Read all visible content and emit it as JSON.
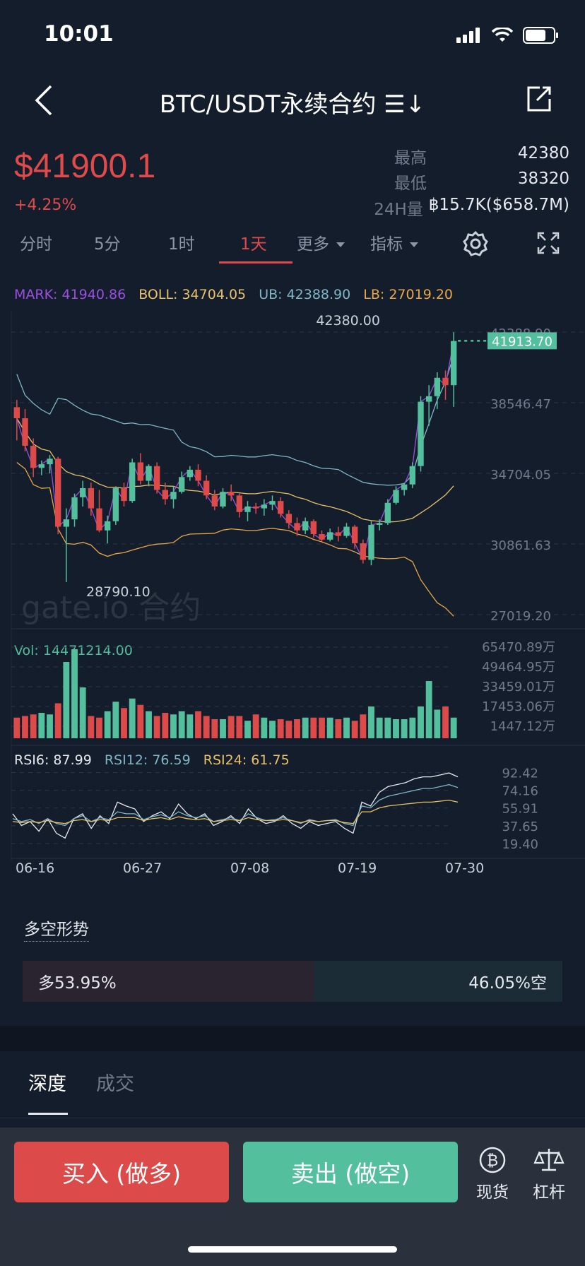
{
  "status": {
    "time": "10:01"
  },
  "header": {
    "title": "BTC/USDT永续合约 ☰↓"
  },
  "price": {
    "last": "$41900.1",
    "change": "+4.25%",
    "high_label": "最高",
    "high": "42380",
    "low_label": "最低",
    "low": "38320",
    "vol_label": "24H量",
    "vol": "฿15.7K($658.7M)"
  },
  "tabs": {
    "items": [
      "分时",
      "5分",
      "1时",
      "1天"
    ],
    "more": "更多",
    "indicator": "指标"
  },
  "legend": {
    "mark": "MARK: 41940.86",
    "boll": "BOLL: 34704.05",
    "ub": "UB: 42388.90",
    "lb": "LB: 27019.20",
    "vol": "Vol: 14471214.00",
    "rsi6": "RSI6: 87.99",
    "rsi12": "RSI12: 76.59",
    "rsi24": "RSI24: 61.75"
  },
  "chart_data": {
    "type": "candlestick",
    "y_ticks": [
      "42388.90",
      "38546.47",
      "34704.05",
      "30861.63",
      "27019.20"
    ],
    "ylim": [
      27019.2,
      42388.9
    ],
    "max_label": "42380.00",
    "min_label": "28790.10",
    "current_label": "41913.70",
    "watermark": "gate.io 合约",
    "vol_ticks": [
      "65470.89万",
      "49464.95万",
      "33459.01万",
      "17453.06万",
      "1447.12万"
    ],
    "rsi_ticks": [
      "92.42",
      "74.16",
      "55.91",
      "37.65",
      "19.40"
    ],
    "x_labels": [
      "06-16",
      "06-27",
      "07-08",
      "07-19",
      "07-30"
    ],
    "candles": [
      [
        38300,
        38700,
        36500,
        37700
      ],
      [
        37700,
        38200,
        35900,
        36200
      ],
      [
        36200,
        36600,
        34500,
        35000
      ],
      [
        35000,
        35400,
        34600,
        35200
      ],
      [
        35200,
        35700,
        34700,
        35500
      ],
      [
        35500,
        35600,
        31400,
        31800
      ],
      [
        31800,
        32800,
        28790,
        32200
      ],
      [
        32200,
        33600,
        31800,
        33400
      ],
      [
        33400,
        34300,
        32900,
        33900
      ],
      [
        33900,
        34200,
        32400,
        32800
      ],
      [
        32800,
        33800,
        31500,
        31600
      ],
      [
        31600,
        32400,
        30900,
        32100
      ],
      [
        32100,
        34000,
        31900,
        33900
      ],
      [
        33900,
        34200,
        32900,
        33200
      ],
      [
        33200,
        35500,
        33100,
        35300
      ],
      [
        35300,
        35800,
        34100,
        34300
      ],
      [
        34300,
        35200,
        34000,
        35100
      ],
      [
        35100,
        35300,
        33600,
        33800
      ],
      [
        33800,
        34200,
        33000,
        33300
      ],
      [
        33300,
        34000,
        32800,
        33700
      ],
      [
        33700,
        34800,
        33600,
        34500
      ],
      [
        34500,
        35100,
        34300,
        34900
      ],
      [
        34900,
        35200,
        34000,
        34300
      ],
      [
        34300,
        34600,
        33300,
        33500
      ],
      [
        33500,
        33800,
        32700,
        32900
      ],
      [
        32900,
        33900,
        32800,
        33700
      ],
      [
        33700,
        34100,
        33200,
        33500
      ],
      [
        33500,
        33600,
        32300,
        32600
      ],
      [
        32600,
        33200,
        32100,
        32900
      ],
      [
        32900,
        33100,
        32500,
        32800
      ],
      [
        32800,
        33300,
        32400,
        33000
      ],
      [
        33000,
        33500,
        32700,
        33200
      ],
      [
        33200,
        33400,
        32300,
        32500
      ],
      [
        32500,
        32700,
        31700,
        32000
      ],
      [
        32000,
        32300,
        31300,
        31600
      ],
      [
        31600,
        32300,
        31400,
        32100
      ],
      [
        32100,
        32200,
        31200,
        31400
      ],
      [
        31400,
        31600,
        31000,
        31100
      ],
      [
        31100,
        31700,
        31000,
        31500
      ],
      [
        31500,
        31800,
        31000,
        31300
      ],
      [
        31300,
        32000,
        31200,
        31800
      ],
      [
        31800,
        31900,
        30600,
        30900
      ],
      [
        30900,
        31100,
        29800,
        30000
      ],
      [
        30000,
        32100,
        29700,
        31900
      ],
      [
        31900,
        32200,
        31600,
        32000
      ],
      [
        32000,
        33300,
        31900,
        33100
      ],
      [
        33100,
        34000,
        33000,
        33800
      ],
      [
        33800,
        34200,
        33500,
        34100
      ],
      [
        34100,
        35300,
        33900,
        35100
      ],
      [
        35100,
        38900,
        34800,
        38600
      ],
      [
        38600,
        39500,
        37300,
        38900
      ],
      [
        38900,
        40200,
        38200,
        39900
      ],
      [
        39900,
        40300,
        38700,
        39500
      ],
      [
        39500,
        42380,
        38320,
        41900
      ]
    ],
    "volumes": [
      13,
      14,
      15,
      16,
      15,
      22,
      48,
      56,
      32,
      14,
      13,
      17,
      23,
      19,
      25,
      21,
      17,
      14,
      16,
      15,
      17,
      15,
      17,
      14,
      12,
      12,
      14,
      14,
      11,
      15,
      13,
      11,
      12,
      11,
      12,
      13,
      13,
      13,
      13,
      12,
      13,
      11,
      15,
      20,
      13,
      13,
      12,
      12,
      13,
      20,
      36,
      18,
      20,
      13
    ],
    "rsi6": [
      50,
      38,
      42,
      32,
      45,
      30,
      25,
      45,
      50,
      35,
      48,
      40,
      62,
      58,
      55,
      42,
      48,
      52,
      45,
      60,
      50,
      45,
      50,
      38,
      42,
      48,
      40,
      55,
      45,
      40,
      42,
      48,
      40,
      35,
      42,
      38,
      40,
      42,
      35,
      30,
      62,
      58,
      72,
      78,
      80,
      82,
      86,
      88,
      88,
      90,
      92,
      88
    ],
    "rsi12": [
      45,
      42,
      44,
      40,
      45,
      40,
      38,
      45,
      48,
      42,
      46,
      44,
      52,
      50,
      50,
      44,
      47,
      49,
      46,
      52,
      48,
      46,
      48,
      42,
      44,
      46,
      43,
      50,
      46,
      43,
      44,
      46,
      43,
      40,
      44,
      42,
      43,
      44,
      40,
      38,
      58,
      56,
      64,
      68,
      70,
      72,
      74,
      76,
      76,
      78,
      80,
      77
    ],
    "rsi24": [
      42,
      41,
      42,
      41,
      43,
      41,
      40,
      43,
      44,
      42,
      44,
      43,
      46,
      46,
      46,
      43,
      45,
      46,
      44,
      47,
      45,
      44,
      45,
      42,
      43,
      44,
      43,
      46,
      44,
      43,
      43,
      44,
      43,
      41,
      43,
      42,
      43,
      43,
      41,
      40,
      52,
      52,
      56,
      58,
      59,
      60,
      61,
      62,
      62,
      63,
      64,
      62
    ]
  },
  "long_short": {
    "title": "多空形势",
    "long_label": "多53.95%",
    "short_label": "46.05%空",
    "long_pct": 53.95
  },
  "depth_tabs": [
    "深度",
    "成交"
  ],
  "actions": {
    "buy": "买入 (做多)",
    "sell": "卖出 (做空)",
    "spot": "现货",
    "margin": "杠杆"
  },
  "colors": {
    "up": "#53bf9d",
    "down": "#dc4a4a",
    "mark": "#9a4fe0",
    "boll": "#e8c26a",
    "ub": "#7fb6c6"
  }
}
